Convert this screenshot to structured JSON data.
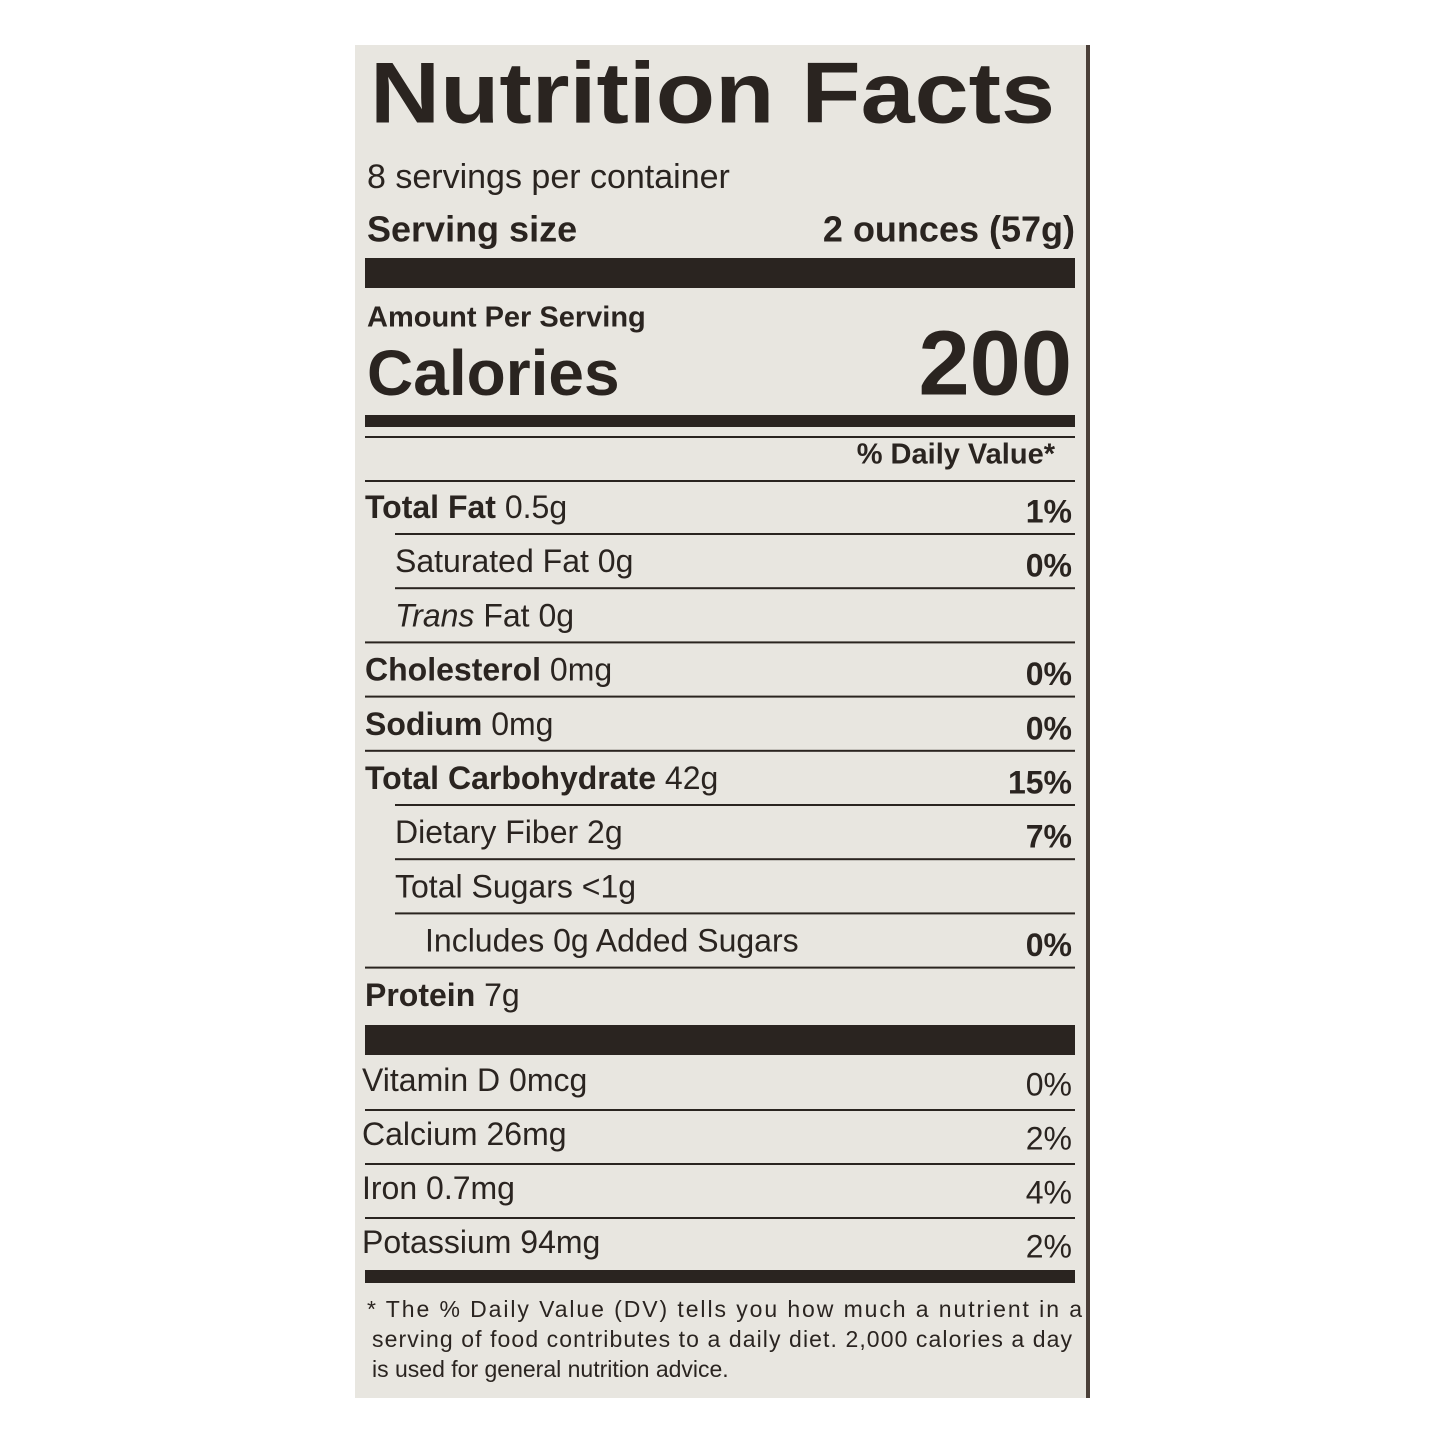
{
  "title": "Nutrition Facts",
  "servings": "8 servings per container",
  "serving_size": {
    "label": "Serving size",
    "value": "2 ounces (57g)"
  },
  "amount_per_serving": "Amount Per Serving",
  "calories": {
    "label": "Calories",
    "value": "200"
  },
  "daily_value_header": "% Daily Value*",
  "nutrients": [
    {
      "name": "Total Fat",
      "amount": "0.5g",
      "dv": "1%",
      "bold": true,
      "indent": 0
    },
    {
      "name": "Saturated Fat",
      "amount": "0g",
      "dv": "0%",
      "bold": false,
      "indent": 1
    },
    {
      "name": "Trans",
      "amount": "Fat 0g",
      "bold": false,
      "italic": true,
      "indent": 1
    },
    {
      "name": "Cholesterol",
      "amount": "0mg",
      "dv": "0%",
      "bold": true,
      "indent": 0
    },
    {
      "name": "Sodium",
      "amount": "0mg",
      "dv": "0%",
      "bold": true,
      "indent": 0
    },
    {
      "name": "Total Carbohydrate",
      "amount": "42g",
      "dv": "15%",
      "bold": true,
      "indent": 0
    },
    {
      "name": "Dietary Fiber",
      "amount": "2g",
      "dv": "7%",
      "bold": false,
      "indent": 1
    },
    {
      "name": "Total Sugars",
      "amount": "<1g",
      "bold": false,
      "indent": 1
    },
    {
      "name": "Includes 0g Added Sugars",
      "dv": "0%",
      "bold": false,
      "indent": 2
    },
    {
      "name": "Protein",
      "amount": "7g",
      "bold": true,
      "indent": 0
    }
  ],
  "vitamins": [
    {
      "name": "Vitamin D",
      "amount": "0mcg",
      "dv": "0%"
    },
    {
      "name": "Calcium",
      "amount": "26mg",
      "dv": "2%"
    },
    {
      "name": "Iron",
      "amount": "0.7mg",
      "dv": "4%"
    },
    {
      "name": "Potassium",
      "amount": "94mg",
      "dv": "2%"
    }
  ],
  "footnote": [
    "* The % Daily Value (DV) tells you how much a nutrient in a",
    "serving of food contributes to a daily diet. 2,000 calories a day",
    "is used for general nutrition advice."
  ]
}
